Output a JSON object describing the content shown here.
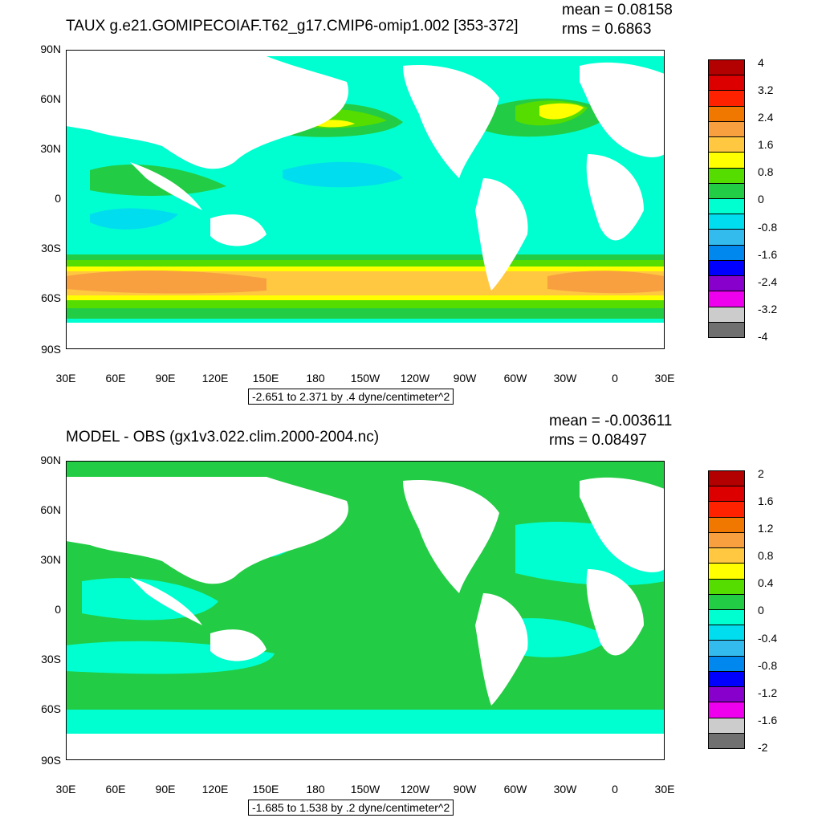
{
  "chart_data": [
    {
      "type": "heatmap",
      "title": "TAUX g.e21.GOMIPECOIAF.T62_g17.CMIP6-omip1.002 [353-372]",
      "stats": {
        "mean": "mean = 0.08158",
        "rms": "rms = 0.6863"
      },
      "range_label": "-2.651 to 2.371 by .4 dyne/centimeter^2",
      "lat_ticks": [
        "90N",
        "60N",
        "30N",
        "0",
        "30S",
        "60S",
        "90S"
      ],
      "lon_ticks": [
        "30E",
        "60E",
        "90E",
        "120E",
        "150E",
        "180",
        "150W",
        "120W",
        "90W",
        "60W",
        "30W",
        "0",
        "30E"
      ],
      "colorbar_labels": [
        "4",
        "3.2",
        "2.4",
        "1.6",
        "0.8",
        "0",
        "-0.8",
        "-1.6",
        "-2.4",
        "-3.2",
        "-4"
      ],
      "colorbar_colors": [
        "#b30000",
        "#dd0000",
        "#ff2200",
        "#f07800",
        "#f8a040",
        "#ffc840",
        "#ffff00",
        "#55dd00",
        "#22cc44",
        "#00ffd0",
        "#00ddee",
        "#33bbee",
        "#0088ee",
        "#0000ff",
        "#8800cc",
        "#ee00ee",
        "#cccccc",
        "#707070"
      ]
    },
    {
      "type": "heatmap",
      "title": "MODEL - OBS (gx1v3.022.clim.2000-2004.nc)",
      "stats": {
        "mean": "mean = -0.003611",
        "rms": "rms = 0.08497"
      },
      "range_label": "-1.685 to 1.538 by .2 dyne/centimeter^2",
      "lat_ticks": [
        "90N",
        "60N",
        "30N",
        "0",
        "30S",
        "60S",
        "90S"
      ],
      "lon_ticks": [
        "30E",
        "60E",
        "90E",
        "120E",
        "150E",
        "180",
        "150W",
        "120W",
        "90W",
        "60W",
        "30W",
        "0",
        "30E"
      ],
      "colorbar_labels": [
        "2",
        "1.6",
        "1.2",
        "0.8",
        "0.4",
        "0",
        "-0.4",
        "-0.8",
        "-1.2",
        "-1.6",
        "-2"
      ],
      "colorbar_colors": [
        "#b30000",
        "#dd0000",
        "#ff2200",
        "#f07800",
        "#f8a040",
        "#ffc840",
        "#ffff00",
        "#55dd00",
        "#22cc44",
        "#00ffd0",
        "#00ddee",
        "#33bbee",
        "#0088ee",
        "#0000ff",
        "#8800cc",
        "#ee00ee",
        "#cccccc",
        "#707070"
      ]
    }
  ]
}
